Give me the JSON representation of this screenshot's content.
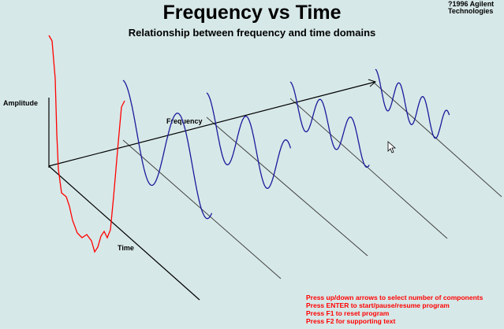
{
  "header": {
    "title": "Frequency vs Time",
    "subtitle": "Relationship between frequency and time domains",
    "copyright_line1": "?1996 Agilent",
    "copyright_line2": "Technologies"
  },
  "diagram": {
    "labels": {
      "amplitude": "Amplitude",
      "frequency": "Frequency",
      "time": "Time"
    },
    "colors": {
      "background": "#d7e8e8",
      "axis": "#000000",
      "component_wave": "#1a1a9c",
      "sum_wave": "#ff0000",
      "projection_line": "#404040"
    },
    "component_count": 4
  },
  "instructions": [
    "Press up/down arrows to select number of components",
    "Press ENTER to start/pause/resume program",
    "Press F1 to reset program",
    "Press F2 for supporting text"
  ],
  "cursor": {
    "icon": "mouse-pointer-icon"
  }
}
